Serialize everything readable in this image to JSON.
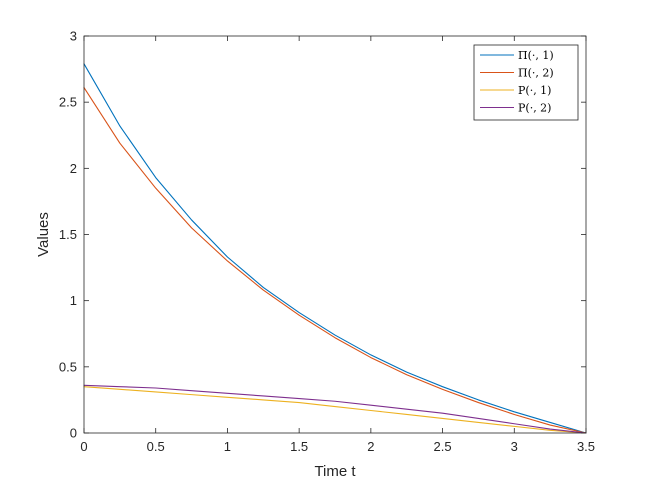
{
  "chart_data": {
    "type": "line",
    "xlabel": "Time t",
    "ylabel": "Values",
    "xlim": [
      0,
      3.5
    ],
    "ylim": [
      0,
      3
    ],
    "xticks": [
      "0",
      "0.5",
      "1",
      "1.5",
      "2",
      "2.5",
      "3",
      "3.5"
    ],
    "yticks": [
      "0",
      "0.5",
      "1",
      "1.5",
      "2",
      "2.5",
      "3"
    ],
    "grid": false,
    "legend_position": "top-right",
    "x": [
      0,
      0.25,
      0.5,
      0.75,
      1,
      1.25,
      1.5,
      1.75,
      2,
      2.25,
      2.5,
      2.75,
      3,
      3.25,
      3.5
    ],
    "series": [
      {
        "name": "Π(·, 1)",
        "color": "#0072BD",
        "values": [
          2.79,
          2.32,
          1.93,
          1.61,
          1.33,
          1.1,
          0.91,
          0.74,
          0.59,
          0.46,
          0.35,
          0.25,
          0.16,
          0.08,
          0.0
        ]
      },
      {
        "name": "Π(·, 2)",
        "color": "#D95319",
        "values": [
          2.61,
          2.19,
          1.85,
          1.55,
          1.3,
          1.08,
          0.89,
          0.72,
          0.57,
          0.44,
          0.33,
          0.23,
          0.14,
          0.06,
          0.0
        ]
      },
      {
        "name": "P(·, 1)",
        "color": "#EDB120",
        "values": [
          0.35,
          0.33,
          0.31,
          0.29,
          0.27,
          0.25,
          0.23,
          0.2,
          0.17,
          0.14,
          0.11,
          0.08,
          0.05,
          0.02,
          0.0
        ]
      },
      {
        "name": "P(·, 2)",
        "color": "#7E2F8E",
        "values": [
          0.36,
          0.35,
          0.34,
          0.32,
          0.3,
          0.28,
          0.26,
          0.24,
          0.21,
          0.18,
          0.15,
          0.11,
          0.07,
          0.03,
          0.0
        ]
      }
    ]
  }
}
